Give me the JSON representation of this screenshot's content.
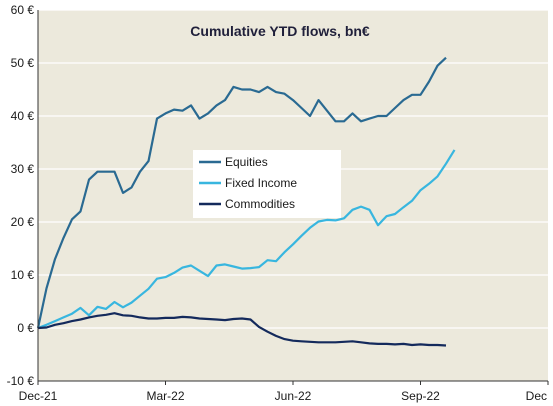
{
  "chart_data": {
    "type": "line",
    "title": "Cumulative YTD flows, bn€",
    "xlabel": "",
    "ylabel": "",
    "ylim": [
      -10,
      60
    ],
    "y_ticks": [
      -10,
      0,
      10,
      20,
      30,
      40,
      50,
      60
    ],
    "y_tick_labels": [
      "-10 €",
      "0 €",
      "10 €",
      "20 €",
      "30 €",
      "40 €",
      "50 €",
      "60 €"
    ],
    "x_ticks": [
      "Dec-21",
      "Mar-22",
      "Jun-22",
      "Sep-22",
      "Dec"
    ],
    "grid": true,
    "legend_position": "center",
    "colors": {
      "plot_background": "#ece9dc",
      "grid": "#ffffff",
      "axis": "#333333",
      "legend_background": "#ffffff"
    },
    "series": [
      {
        "name": "Equities",
        "color": "#2a6a92",
        "points": [
          [
            0,
            0
          ],
          [
            1,
            7.5
          ],
          [
            2,
            13
          ],
          [
            3,
            17
          ],
          [
            4,
            20.5
          ],
          [
            5,
            22
          ],
          [
            6,
            28
          ],
          [
            7,
            29.5
          ],
          [
            8,
            29.5
          ],
          [
            9,
            29.5
          ],
          [
            10,
            25.5
          ],
          [
            11,
            26.5
          ],
          [
            12,
            29.5
          ],
          [
            13,
            31.5
          ],
          [
            14,
            39.5
          ],
          [
            15,
            40.5
          ],
          [
            16,
            41.2
          ],
          [
            17,
            41
          ],
          [
            18,
            42
          ],
          [
            19,
            39.5
          ],
          [
            20,
            40.5
          ],
          [
            21,
            42
          ],
          [
            22,
            43
          ],
          [
            23,
            45.5
          ],
          [
            24,
            45
          ],
          [
            25,
            45
          ],
          [
            26,
            44.5
          ],
          [
            27,
            45.5
          ],
          [
            28,
            44.5
          ],
          [
            29,
            44.2
          ],
          [
            30,
            43
          ],
          [
            31,
            41.5
          ],
          [
            32,
            40
          ],
          [
            33,
            43
          ],
          [
            34,
            41
          ],
          [
            35,
            39
          ],
          [
            36,
            39
          ],
          [
            37,
            40.5
          ],
          [
            38,
            39
          ],
          [
            39,
            39.5
          ],
          [
            40,
            40
          ],
          [
            41,
            40
          ],
          [
            42,
            41.5
          ],
          [
            43,
            43
          ],
          [
            44,
            44
          ],
          [
            45,
            44
          ],
          [
            46,
            46.5
          ],
          [
            47,
            49.5
          ],
          [
            48,
            51
          ]
        ]
      },
      {
        "name": "Fixed Income",
        "color": "#38b6df",
        "points": [
          [
            0,
            0
          ],
          [
            1,
            0.6
          ],
          [
            2,
            1.3
          ],
          [
            3,
            2
          ],
          [
            4,
            2.7
          ],
          [
            5,
            3.8
          ],
          [
            6,
            2.4
          ],
          [
            7,
            4
          ],
          [
            8,
            3.6
          ],
          [
            9,
            4.9
          ],
          [
            10,
            3.9
          ],
          [
            11,
            4.8
          ],
          [
            12,
            6.1
          ],
          [
            13,
            7.4
          ],
          [
            14,
            9.3
          ],
          [
            15,
            9.6
          ],
          [
            16,
            10.4
          ],
          [
            17,
            11.4
          ],
          [
            18,
            11.8
          ],
          [
            19,
            10.8
          ],
          [
            20,
            9.8
          ],
          [
            21,
            11.8
          ],
          [
            22,
            12
          ],
          [
            23,
            11.6
          ],
          [
            24,
            11.2
          ],
          [
            25,
            11.3
          ],
          [
            26,
            11.5
          ],
          [
            27,
            12.8
          ],
          [
            28,
            12.6
          ],
          [
            29,
            14.3
          ],
          [
            30,
            15.8
          ],
          [
            31,
            17.4
          ],
          [
            32,
            18.9
          ],
          [
            33,
            20.1
          ],
          [
            34,
            20.4
          ],
          [
            35,
            20.3
          ],
          [
            36,
            20.7
          ],
          [
            37,
            22.3
          ],
          [
            38,
            22.9
          ],
          [
            39,
            22.3
          ],
          [
            40,
            19.4
          ],
          [
            41,
            21.1
          ],
          [
            42,
            21.5
          ],
          [
            43,
            22.8
          ],
          [
            44,
            24
          ],
          [
            45,
            26
          ],
          [
            46,
            27.2
          ],
          [
            47,
            28.6
          ],
          [
            48,
            31
          ],
          [
            49,
            33.6
          ]
        ]
      },
      {
        "name": "Commodities",
        "color": "#142a5c",
        "points": [
          [
            0,
            0
          ],
          [
            1,
            0.1
          ],
          [
            2,
            0.6
          ],
          [
            3,
            0.9
          ],
          [
            4,
            1.3
          ],
          [
            5,
            1.6
          ],
          [
            6,
            2
          ],
          [
            7,
            2.3
          ],
          [
            8,
            2.5
          ],
          [
            9,
            2.8
          ],
          [
            10,
            2.4
          ],
          [
            11,
            2.3
          ],
          [
            12,
            2
          ],
          [
            13,
            1.8
          ],
          [
            14,
            1.8
          ],
          [
            15,
            1.9
          ],
          [
            16,
            1.9
          ],
          [
            17,
            2.1
          ],
          [
            18,
            2
          ],
          [
            19,
            1.8
          ],
          [
            20,
            1.7
          ],
          [
            21,
            1.6
          ],
          [
            22,
            1.5
          ],
          [
            23,
            1.7
          ],
          [
            24,
            1.8
          ],
          [
            25,
            1.6
          ],
          [
            26,
            0.2
          ],
          [
            27,
            -0.7
          ],
          [
            28,
            -1.5
          ],
          [
            29,
            -2.1
          ],
          [
            30,
            -2.4
          ],
          [
            31,
            -2.5
          ],
          [
            32,
            -2.6
          ],
          [
            33,
            -2.7
          ],
          [
            34,
            -2.7
          ],
          [
            35,
            -2.7
          ],
          [
            36,
            -2.6
          ],
          [
            37,
            -2.5
          ],
          [
            38,
            -2.7
          ],
          [
            39,
            -2.9
          ],
          [
            40,
            -3
          ],
          [
            41,
            -3
          ],
          [
            42,
            -3.1
          ],
          [
            43,
            -3
          ],
          [
            44,
            -3.2
          ],
          [
            45,
            -3.1
          ],
          [
            46,
            -3.2
          ],
          [
            47,
            -3.2
          ],
          [
            48,
            -3.3
          ]
        ]
      }
    ]
  }
}
